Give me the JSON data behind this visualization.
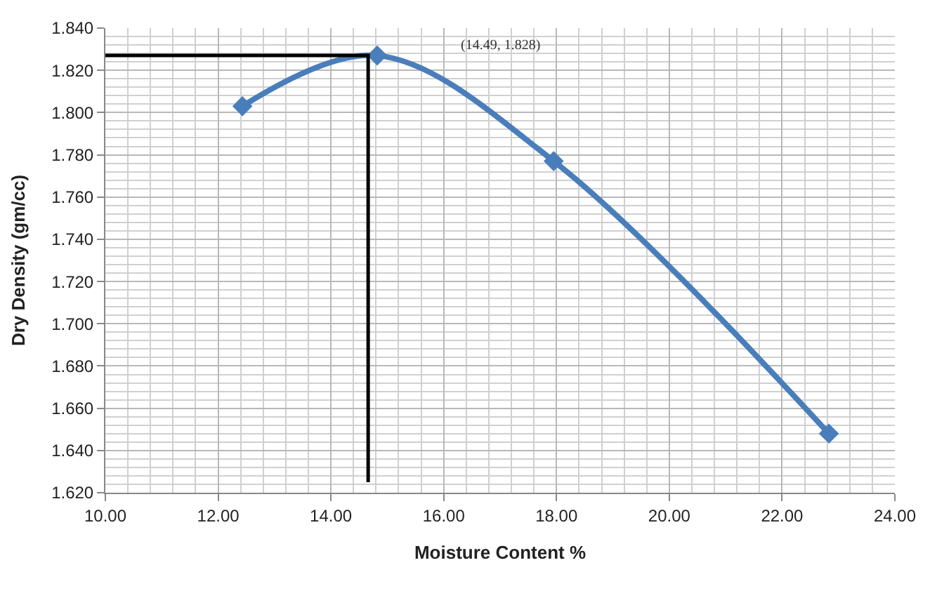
{
  "chart_data": {
    "type": "line",
    "xlabel": "Moisture Content %",
    "ylabel": "Dry Density (gm/cc)",
    "series": [
      {
        "color": "#4a7ebb",
        "x": [
          12.43,
          14.82,
          17.95,
          22.83
        ],
        "values": [
          1.803,
          1.827,
          1.777,
          1.648
        ],
        "marker": "diamond"
      },
      {
        "color": "#000000",
        "x": [
          10.0,
          14.66,
          14.66
        ],
        "values": [
          1.827,
          1.827,
          1.625
        ],
        "marker": "none"
      }
    ],
    "annotations": [
      "(14.49, 1.828)"
    ],
    "xlim": [
      10,
      24
    ],
    "xticks": [
      {
        "value": 10,
        "label": "10.00"
      },
      {
        "value": 12,
        "label": "12.00"
      },
      {
        "value": 14,
        "label": "14.00"
      },
      {
        "value": 16,
        "label": "16.00"
      },
      {
        "value": 18,
        "label": "18.00"
      },
      {
        "value": 20,
        "label": "20.00"
      },
      {
        "value": 22,
        "label": "22.00"
      },
      {
        "value": 24,
        "label": "24.00"
      }
    ],
    "ylim": [
      1.62,
      1.84
    ],
    "yticks": [
      {
        "value": 1.62,
        "label": "1.620"
      },
      {
        "value": 1.64,
        "label": "1.640"
      },
      {
        "value": 1.66,
        "label": "1.660"
      },
      {
        "value": 1.68,
        "label": "1.680"
      },
      {
        "value": 1.7,
        "label": "1.700"
      },
      {
        "value": 1.72,
        "label": "1.720"
      },
      {
        "value": 1.74,
        "label": "1.740"
      },
      {
        "value": 1.76,
        "label": "1.760"
      },
      {
        "value": 1.78,
        "label": "1.780"
      },
      {
        "value": 1.8,
        "label": "1.800"
      },
      {
        "value": 1.82,
        "label": "1.820"
      },
      {
        "value": 1.84,
        "label": "1.840"
      }
    ],
    "grid": true
  }
}
